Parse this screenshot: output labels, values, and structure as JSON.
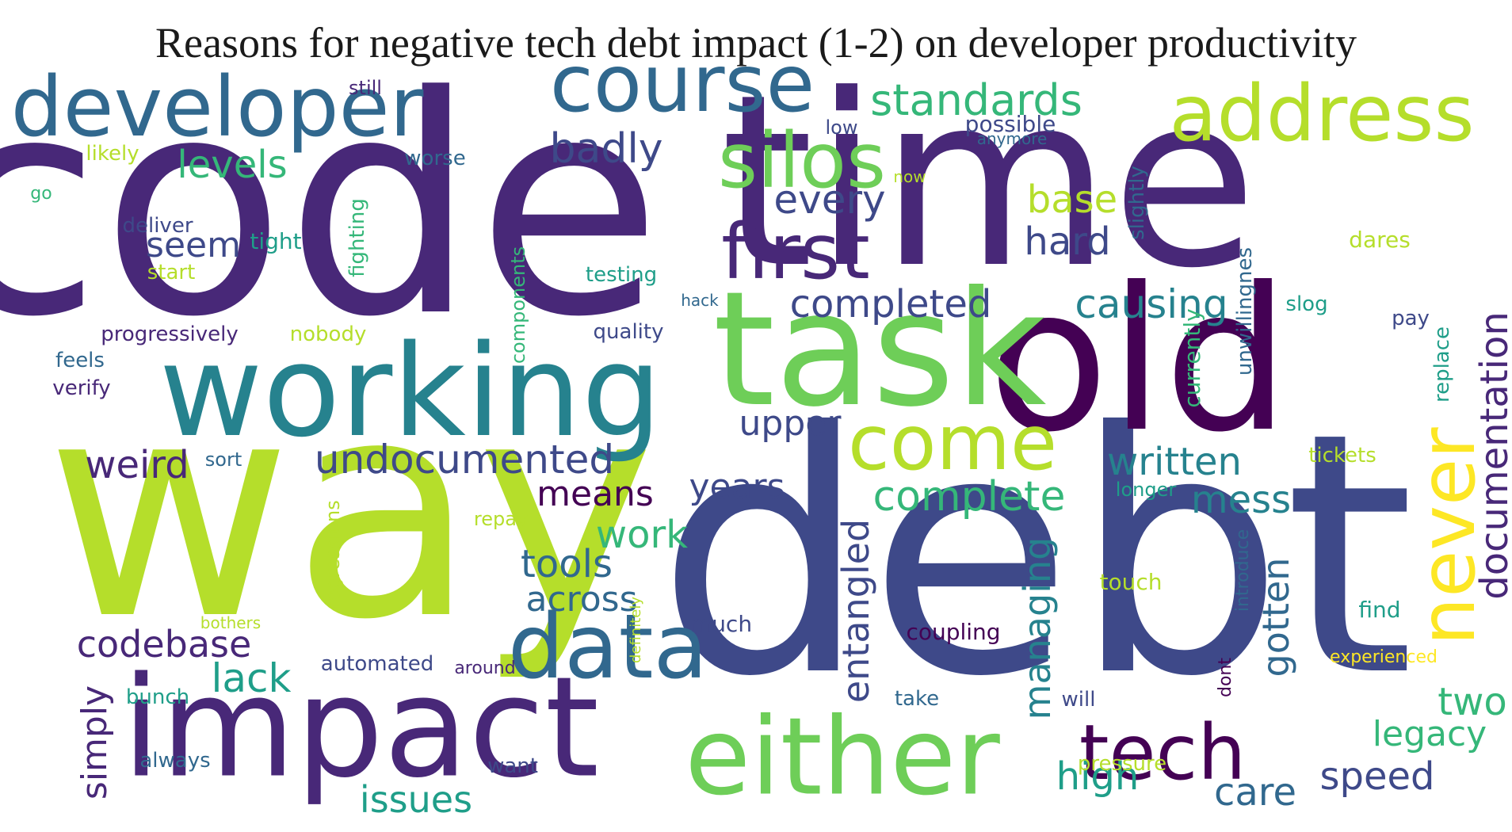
{
  "title": "Reasons for negative tech debt impact (1-2) on developer productivity",
  "colors": {
    "dark_purple": "#440154",
    "purple": "#482878",
    "indigo": "#3e4989",
    "blue": "#31688e",
    "steel": "#26828e",
    "teal": "#1f9e89",
    "green_teal": "#35b779",
    "green": "#6ece58",
    "yellow_green": "#b5de2b",
    "yellow": "#fde725"
  },
  "words": [
    {
      "text": "code"
    },
    {
      "text": "time"
    },
    {
      "text": "debt"
    },
    {
      "text": "way"
    },
    {
      "text": "old"
    },
    {
      "text": "task"
    },
    {
      "text": "working"
    },
    {
      "text": "impact"
    },
    {
      "text": "either"
    },
    {
      "text": "developer"
    },
    {
      "text": "course"
    },
    {
      "text": "address"
    },
    {
      "text": "silos"
    },
    {
      "text": "first"
    },
    {
      "text": "data"
    },
    {
      "text": "tech"
    },
    {
      "text": "come"
    },
    {
      "text": "never"
    },
    {
      "text": "standards"
    },
    {
      "text": "documentation"
    },
    {
      "text": "badly"
    },
    {
      "text": "levels"
    },
    {
      "text": "every"
    },
    {
      "text": "base"
    },
    {
      "text": "hard"
    },
    {
      "text": "seem"
    },
    {
      "text": "completed"
    },
    {
      "text": "causing"
    },
    {
      "text": "undocumented"
    },
    {
      "text": "weird"
    },
    {
      "text": "upper"
    },
    {
      "text": "written"
    },
    {
      "text": "complete"
    },
    {
      "text": "mess"
    },
    {
      "text": "means"
    },
    {
      "text": "years"
    },
    {
      "text": "work"
    },
    {
      "text": "tools"
    },
    {
      "text": "across"
    },
    {
      "text": "entangled"
    },
    {
      "text": "managing"
    },
    {
      "text": "gotten"
    },
    {
      "text": "codebase"
    },
    {
      "text": "lack"
    },
    {
      "text": "simply"
    },
    {
      "text": "two"
    },
    {
      "text": "legacy"
    },
    {
      "text": "high"
    },
    {
      "text": "speed"
    },
    {
      "text": "care"
    },
    {
      "text": "issues"
    },
    {
      "text": "deliver"
    },
    {
      "text": "tight"
    },
    {
      "text": "start"
    },
    {
      "text": "likely"
    },
    {
      "text": "still"
    },
    {
      "text": "worse"
    },
    {
      "text": "go"
    },
    {
      "text": "fighting"
    },
    {
      "text": "low"
    },
    {
      "text": "possible"
    },
    {
      "text": "anymore"
    },
    {
      "text": "now"
    },
    {
      "text": "slightly"
    },
    {
      "text": "dares"
    },
    {
      "text": "testing"
    },
    {
      "text": "components"
    },
    {
      "text": "hack"
    },
    {
      "text": "unwillingnes"
    },
    {
      "text": "slog"
    },
    {
      "text": "pay"
    },
    {
      "text": "progressively"
    },
    {
      "text": "nobody"
    },
    {
      "text": "quality"
    },
    {
      "text": "feels"
    },
    {
      "text": "verify"
    },
    {
      "text": "currently"
    },
    {
      "text": "replace"
    },
    {
      "text": "sort"
    },
    {
      "text": "tickets"
    },
    {
      "text": "longer"
    },
    {
      "text": "repay"
    },
    {
      "text": "regressions"
    },
    {
      "text": "definitely"
    },
    {
      "text": "introduce"
    },
    {
      "text": "touch"
    },
    {
      "text": "bothers"
    },
    {
      "text": "much"
    },
    {
      "text": "coupling"
    },
    {
      "text": "find"
    },
    {
      "text": "automated"
    },
    {
      "text": "around"
    },
    {
      "text": "dont"
    },
    {
      "text": "experienced"
    },
    {
      "text": "bunch"
    },
    {
      "text": "take"
    },
    {
      "text": "will"
    },
    {
      "text": "always"
    },
    {
      "text": "want"
    },
    {
      "text": "pressure"
    }
  ]
}
